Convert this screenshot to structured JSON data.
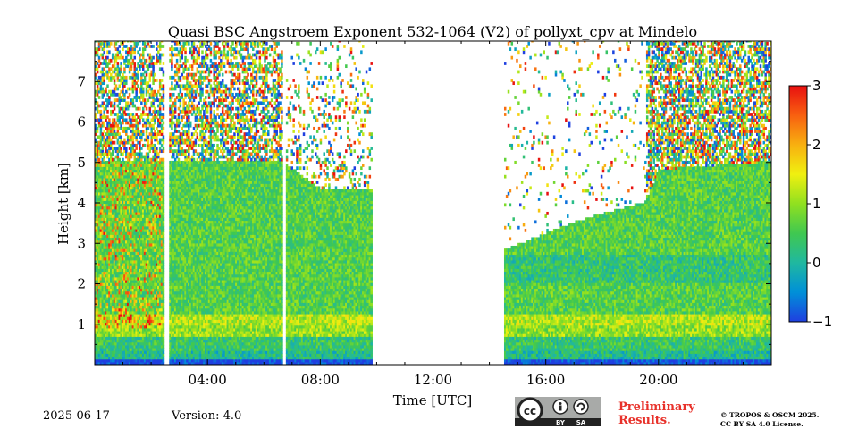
{
  "chart_data": {
    "type": "heatmap",
    "title": "Quasi BSC Angstroem Exponent 532-1064 (V2) of pollyxt_cpv at Mindelo",
    "xlabel": "Time [UTC]",
    "ylabel": "Height [km]",
    "xlim": [
      0,
      24
    ],
    "ylim": [
      0,
      8
    ],
    "x_ticks": [
      4,
      8,
      12,
      16,
      20
    ],
    "x_tick_labels": [
      "04:00",
      "08:00",
      "12:00",
      "16:00",
      "20:00"
    ],
    "y_ticks": [
      1,
      2,
      3,
      4,
      5,
      6,
      7
    ],
    "y_tick_labels": [
      "1",
      "2",
      "3",
      "4",
      "5",
      "6",
      "7"
    ],
    "colorbar": {
      "vmin": -1,
      "vmax": 3,
      "ticks": [
        -1,
        0,
        1,
        2,
        3
      ],
      "tick_labels": [
        "−1",
        "0",
        "1",
        "2",
        "3"
      ],
      "colormap": [
        "#1f3fe0",
        "#0090d8",
        "#20b8a0",
        "#40c850",
        "#90e020",
        "#f0f010",
        "#f8b010",
        "#f86010",
        "#e81010"
      ]
    },
    "no_data_intervals_utc": [
      [
        2.45,
        2.6
      ],
      [
        6.6,
        6.75
      ],
      [
        9.8,
        14.5
      ]
    ],
    "cloud_layer_top_km": [
      {
        "time": 0.0,
        "height": 5.0
      },
      {
        "time": 6.6,
        "height": 5.0
      },
      {
        "time": 8.0,
        "height": 4.3
      },
      {
        "time": 9.8,
        "height": 4.3
      },
      {
        "time": 14.5,
        "height": 2.8
      },
      {
        "time": 17.0,
        "height": 3.5
      },
      {
        "time": 19.5,
        "height": 4.0
      },
      {
        "time": 20.0,
        "height": 4.8
      },
      {
        "time": 24.0,
        "height": 5.0
      }
    ],
    "grid": false
  },
  "footer": {
    "date": "2025-06-17",
    "version": "Version: 4.0",
    "preliminary_line1": "Preliminary",
    "preliminary_line2": "Results.",
    "license_line1": "© TROPOS & OSCM 2025.",
    "license_line2": "CC BY SA 4.0 License.",
    "cc_by": "BY",
    "cc_sa": "SA",
    "cc_logo": "cc"
  },
  "colors": {
    "preliminary": "#e8312a",
    "cc_badge_bg": "#a8aaa8",
    "cc_badge_dark": "#222222"
  }
}
